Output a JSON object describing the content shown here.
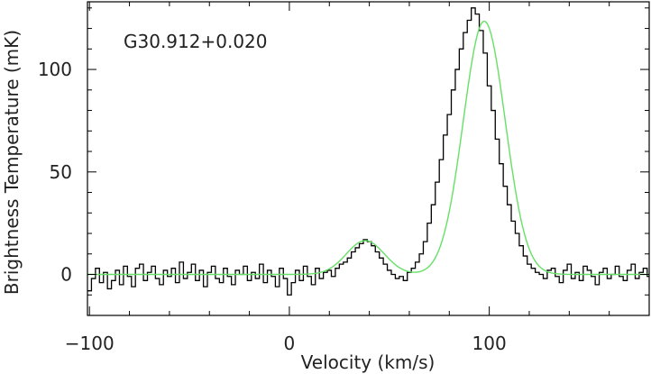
{
  "chart_data": {
    "type": "line",
    "title": "",
    "annotation": "G30.912+0.020",
    "xlabel": "Velocity (km/s)",
    "ylabel": "Brightness Temperature (mK)",
    "xlim": [
      -101,
      180
    ],
    "ylim": [
      -20,
      133
    ],
    "x_ticks": [
      -100,
      0,
      100
    ],
    "x_tick_labels": [
      "−100",
      "0",
      "100"
    ],
    "y_ticks": [
      0,
      50,
      100
    ],
    "y_tick_labels": [
      "0",
      "50",
      "100"
    ],
    "grid": false,
    "legend": "none",
    "colors": {
      "observed": "#000000",
      "fit": "#66e066"
    },
    "series": [
      {
        "style": "step",
        "color": "#000000",
        "x": [
          -100,
          -98,
          -96,
          -94,
          -92,
          -90,
          -88,
          -86,
          -84,
          -82,
          -80,
          -78,
          -76,
          -74,
          -72,
          -70,
          -68,
          -66,
          -64,
          -62,
          -60,
          -58,
          -56,
          -54,
          -52,
          -50,
          -48,
          -46,
          -44,
          -42,
          -40,
          -38,
          -36,
          -34,
          -32,
          -30,
          -28,
          -26,
          -24,
          -22,
          -20,
          -18,
          -16,
          -14,
          -12,
          -10,
          -8,
          -6,
          -4,
          -2,
          0,
          2,
          4,
          6,
          8,
          10,
          12,
          14,
          16,
          18,
          20,
          22,
          24,
          26,
          28,
          30,
          32,
          34,
          36,
          38,
          40,
          42,
          44,
          46,
          48,
          50,
          52,
          54,
          56,
          58,
          60,
          62,
          64,
          66,
          68,
          70,
          72,
          74,
          76,
          78,
          80,
          82,
          84,
          86,
          88,
          90,
          92,
          94,
          96,
          98,
          100,
          102,
          104,
          106,
          108,
          110,
          112,
          114,
          116,
          118,
          120,
          122,
          124,
          126,
          128,
          130,
          132,
          134,
          136,
          138,
          140,
          142,
          144,
          146,
          148,
          150,
          152,
          154,
          156,
          158,
          160,
          162,
          164,
          166,
          168,
          170,
          172,
          174,
          176,
          178,
          180
        ],
        "values": [
          -8,
          -2,
          3,
          -4,
          1,
          -7,
          -3,
          2,
          -5,
          4,
          -1,
          -6,
          3,
          5,
          -3,
          1,
          4,
          -2,
          -5,
          2,
          -1,
          3,
          -4,
          6,
          -2,
          1,
          5,
          -3,
          2,
          -6,
          1,
          4,
          -2,
          -4,
          3,
          -1,
          -5,
          2,
          0,
          4,
          -3,
          1,
          -2,
          5,
          -4,
          2,
          -1,
          -6,
          3,
          -2,
          -10,
          -4,
          2,
          -3,
          4,
          -1,
          -5,
          3,
          -2,
          1,
          2,
          -1,
          3,
          5,
          6,
          8,
          11,
          13,
          15,
          17,
          16,
          14,
          11,
          8,
          5,
          2,
          0,
          -2,
          -1,
          -3,
          1,
          3,
          6,
          10,
          16,
          25,
          34,
          45,
          56,
          68,
          78,
          90,
          100,
          110,
          118,
          124,
          130,
          127,
          119,
          108,
          92,
          80,
          66,
          54,
          43,
          34,
          26,
          20,
          14,
          9,
          5,
          3,
          1,
          0,
          -2,
          2,
          3,
          -1,
          -4,
          2,
          5,
          -2,
          1,
          -3,
          4,
          2,
          -1,
          -5,
          1,
          3,
          -2,
          0,
          4,
          -1,
          -3,
          2,
          5,
          -2,
          1,
          3,
          -1
        ]
      },
      {
        "style": "smooth",
        "color": "#66e066",
        "params": [
          {
            "amplitude": 123.5,
            "center": 97.5,
            "sigma": 10.5
          },
          {
            "amplitude": 16.5,
            "center": 38,
            "sigma": 9.5
          }
        ]
      }
    ]
  }
}
